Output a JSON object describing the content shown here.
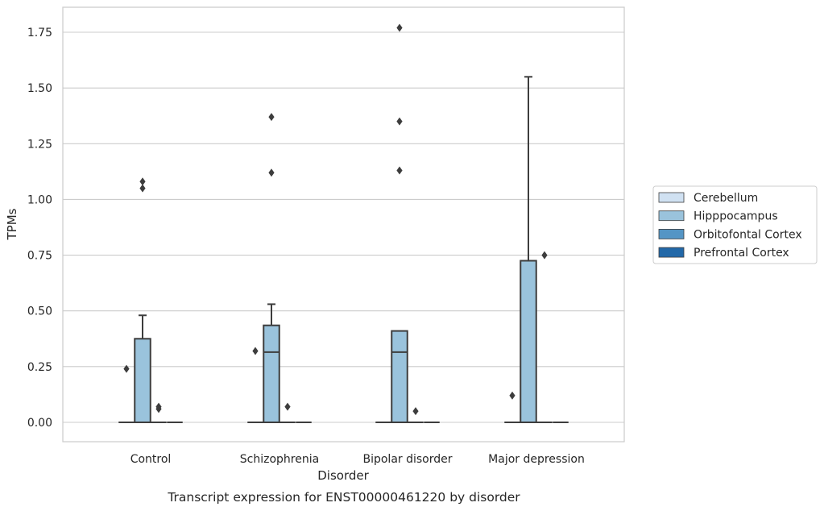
{
  "chart_data": {
    "type": "box",
    "title": "",
    "caption": "Transcript expression for ENST00000461220 by disorder",
    "xlabel": "Disorder",
    "ylabel": "TPMs",
    "ylim": [
      -0.085,
      1.86
    ],
    "yticks": [
      0.0,
      0.25,
      0.5,
      0.75,
      1.0,
      1.25,
      1.5,
      1.75
    ],
    "ytick_labels": [
      "0.00",
      "0.25",
      "0.50",
      "0.75",
      "1.00",
      "1.25",
      "1.50",
      "1.75"
    ],
    "grid": true,
    "legend_position": "right",
    "categories": [
      "Control",
      "Schizophrenia",
      "Bipolar disorder",
      "Major depression"
    ],
    "series": [
      {
        "name": "Cerebellum",
        "color": "#d0e1f2",
        "boxes": [
          {
            "category": "Control",
            "min": 0,
            "q1": 0,
            "median": 0,
            "q3": 0,
            "max": 0,
            "outliers": [
              0.24
            ]
          },
          {
            "category": "Schizophrenia",
            "min": 0,
            "q1": 0,
            "median": 0,
            "q3": 0,
            "max": 0,
            "outliers": [
              0.32
            ]
          },
          {
            "category": "Bipolar disorder",
            "min": 0,
            "q1": 0,
            "median": 0,
            "q3": 0,
            "max": 0,
            "outliers": []
          },
          {
            "category": "Major depression",
            "min": 0,
            "q1": 0,
            "median": 0,
            "q3": 0,
            "max": 0,
            "outliers": [
              0.12
            ]
          }
        ]
      },
      {
        "name": "Hipppocampus",
        "color": "#9ac3dc",
        "boxes": [
          {
            "category": "Control",
            "min": 0,
            "q1": 0,
            "median": 0,
            "q3": 0.375,
            "max": 0.48,
            "outliers": [
              1.05,
              1.08
            ]
          },
          {
            "category": "Schizophrenia",
            "min": 0,
            "q1": 0,
            "median": 0.315,
            "q3": 0.435,
            "max": 0.53,
            "outliers": [
              1.12,
              1.37
            ]
          },
          {
            "category": "Bipolar disorder",
            "min": 0,
            "q1": 0,
            "median": 0.315,
            "q3": 0.41,
            "max": 0.41,
            "outliers": [
              1.13,
              1.35,
              1.77
            ]
          },
          {
            "category": "Major depression",
            "min": 0,
            "q1": 0,
            "median": 0,
            "q3": 0.725,
            "max": 1.55,
            "outliers": []
          }
        ]
      },
      {
        "name": "Orbitofontal Cortex",
        "color": "#5495c5",
        "boxes": [
          {
            "category": "Control",
            "min": 0,
            "q1": 0,
            "median": 0,
            "q3": 0,
            "max": 0,
            "outliers": [
              0.06,
              0.07
            ]
          },
          {
            "category": "Schizophrenia",
            "min": 0,
            "q1": 0,
            "median": 0,
            "q3": 0,
            "max": 0,
            "outliers": [
              0.07
            ]
          },
          {
            "category": "Bipolar disorder",
            "min": 0,
            "q1": 0,
            "median": 0,
            "q3": 0,
            "max": 0,
            "outliers": [
              0.05
            ]
          },
          {
            "category": "Major depression",
            "min": 0,
            "q1": 0,
            "median": 0,
            "q3": 0,
            "max": 0,
            "outliers": [
              0.75
            ]
          }
        ]
      },
      {
        "name": "Prefrontal Cortex",
        "color": "#2268a8",
        "boxes": [
          {
            "category": "Control",
            "min": 0,
            "q1": 0,
            "median": 0,
            "q3": 0,
            "max": 0,
            "outliers": []
          },
          {
            "category": "Schizophrenia",
            "min": 0,
            "q1": 0,
            "median": 0,
            "q3": 0,
            "max": 0,
            "outliers": []
          },
          {
            "category": "Bipolar disorder",
            "min": 0,
            "q1": 0,
            "median": 0,
            "q3": 0,
            "max": 0,
            "outliers": []
          },
          {
            "category": "Major depression",
            "min": 0,
            "q1": 0,
            "median": 0,
            "q3": 0,
            "max": 0,
            "outliers": []
          }
        ]
      }
    ]
  }
}
